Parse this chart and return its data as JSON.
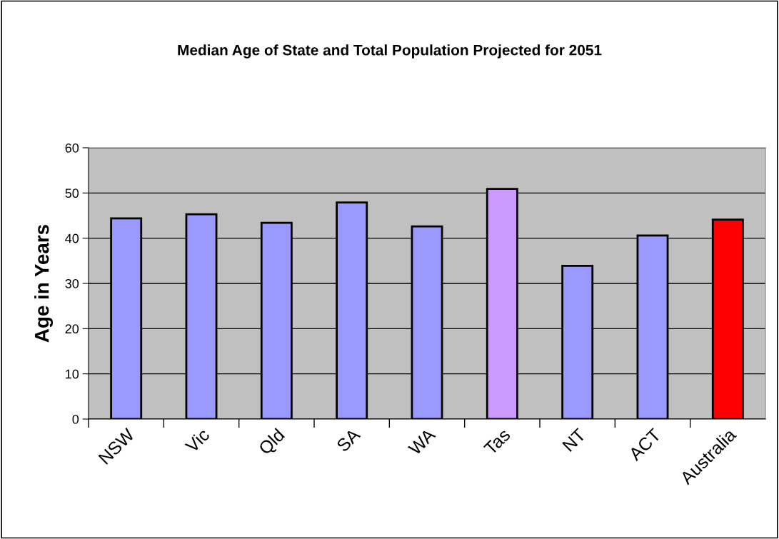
{
  "chart_data": {
    "type": "bar",
    "title": "Median Age of State and Total Population Projected for 2051",
    "ylabel": "Age in Years",
    "categories": [
      "NSW",
      "Vic",
      "Qld",
      "SA",
      "WA",
      "Tas",
      "NT",
      "ACT",
      "Australia"
    ],
    "values": [
      44.4,
      45.3,
      43.4,
      47.9,
      42.6,
      50.9,
      33.9,
      40.6,
      44.1
    ],
    "colors": [
      "#9999ff",
      "#9999ff",
      "#9999ff",
      "#9999ff",
      "#9999ff",
      "#cc99ff",
      "#9999ff",
      "#9999ff",
      "#ff0000"
    ],
    "ylim": [
      0,
      60
    ],
    "yticks": [
      0,
      10,
      20,
      30,
      40,
      50,
      60
    ],
    "grid": "y",
    "legend": false
  }
}
